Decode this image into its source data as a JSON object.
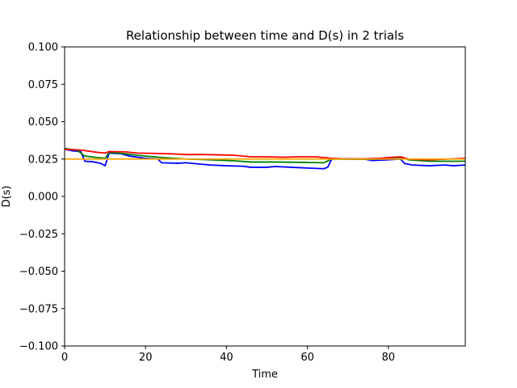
{
  "chart_data": {
    "type": "line",
    "title": "Relationship between time and D(s) in 2 trials",
    "xlabel": "Time",
    "ylabel": "D(s)",
    "xlim": [
      0,
      99
    ],
    "ylim": [
      -0.1,
      0.1
    ],
    "xticks": [
      0,
      20,
      40,
      60,
      80
    ],
    "yticks": [
      -0.1,
      -0.075,
      -0.05,
      -0.025,
      0.0,
      0.025,
      0.05,
      0.075,
      0.1
    ],
    "ytick_labels": [
      "−0.100",
      "−0.075",
      "−0.050",
      "−0.025",
      "0.000",
      "0.025",
      "0.050",
      "0.075",
      "0.100"
    ],
    "grid": false,
    "series": [
      {
        "color": "#0000ff",
        "points": [
          [
            0,
            0.0315
          ],
          [
            2,
            0.0305
          ],
          [
            4,
            0.03
          ],
          [
            5,
            0.0235
          ],
          [
            7,
            0.0232
          ],
          [
            9,
            0.022
          ],
          [
            10,
            0.0205
          ],
          [
            11,
            0.029
          ],
          [
            14,
            0.0285
          ],
          [
            16,
            0.027
          ],
          [
            20,
            0.0255
          ],
          [
            23,
            0.025
          ],
          [
            24,
            0.0225
          ],
          [
            28,
            0.0222
          ],
          [
            30,
            0.0225
          ],
          [
            34,
            0.0215
          ],
          [
            36,
            0.021
          ],
          [
            40,
            0.0205
          ],
          [
            44,
            0.0202
          ],
          [
            46,
            0.0195
          ],
          [
            50,
            0.0195
          ],
          [
            52,
            0.02
          ],
          [
            56,
            0.0195
          ],
          [
            60,
            0.019
          ],
          [
            64,
            0.0185
          ],
          [
            65,
            0.0195
          ],
          [
            66,
            0.025
          ],
          [
            70,
            0.0252
          ],
          [
            74,
            0.025
          ],
          [
            76,
            0.024
          ],
          [
            80,
            0.0245
          ],
          [
            83,
            0.025
          ],
          [
            84,
            0.022
          ],
          [
            86,
            0.021
          ],
          [
            90,
            0.0205
          ],
          [
            94,
            0.021
          ],
          [
            96,
            0.0205
          ],
          [
            99,
            0.021
          ]
        ]
      },
      {
        "color": "#008000",
        "points": [
          [
            0,
            0.032
          ],
          [
            3,
            0.031
          ],
          [
            5,
            0.027
          ],
          [
            8,
            0.026
          ],
          [
            10,
            0.0255
          ],
          [
            11,
            0.0295
          ],
          [
            15,
            0.0285
          ],
          [
            18,
            0.0275
          ],
          [
            24,
            0.026
          ],
          [
            30,
            0.025
          ],
          [
            36,
            0.0245
          ],
          [
            42,
            0.0238
          ],
          [
            46,
            0.023
          ],
          [
            52,
            0.023
          ],
          [
            58,
            0.0228
          ],
          [
            64,
            0.0225
          ],
          [
            66,
            0.025
          ],
          [
            72,
            0.0248
          ],
          [
            78,
            0.025
          ],
          [
            80,
            0.0258
          ],
          [
            83,
            0.026
          ],
          [
            85,
            0.0245
          ],
          [
            90,
            0.0235
          ],
          [
            95,
            0.0235
          ],
          [
            99,
            0.0235
          ]
        ]
      },
      {
        "color": "#ff0000",
        "points": [
          [
            0,
            0.0315
          ],
          [
            4,
            0.031
          ],
          [
            8,
            0.0295
          ],
          [
            10,
            0.029
          ],
          [
            11,
            0.03
          ],
          [
            15,
            0.0298
          ],
          [
            18,
            0.029
          ],
          [
            22,
            0.0288
          ],
          [
            26,
            0.0285
          ],
          [
            30,
            0.028
          ],
          [
            34,
            0.028
          ],
          [
            38,
            0.0278
          ],
          [
            42,
            0.0275
          ],
          [
            46,
            0.0265
          ],
          [
            50,
            0.0265
          ],
          [
            54,
            0.0262
          ],
          [
            58,
            0.0265
          ],
          [
            62,
            0.0265
          ],
          [
            64,
            0.026
          ],
          [
            66,
            0.0255
          ],
          [
            70,
            0.025
          ],
          [
            74,
            0.0252
          ],
          [
            78,
            0.0255
          ],
          [
            80,
            0.026
          ],
          [
            83,
            0.0265
          ],
          [
            85,
            0.025
          ],
          [
            90,
            0.0245
          ],
          [
            95,
            0.025
          ],
          [
            99,
            0.0255
          ]
        ]
      },
      {
        "color": "#ffa500",
        "points": [
          [
            0,
            0.025
          ],
          [
            99,
            0.025
          ]
        ]
      }
    ]
  }
}
